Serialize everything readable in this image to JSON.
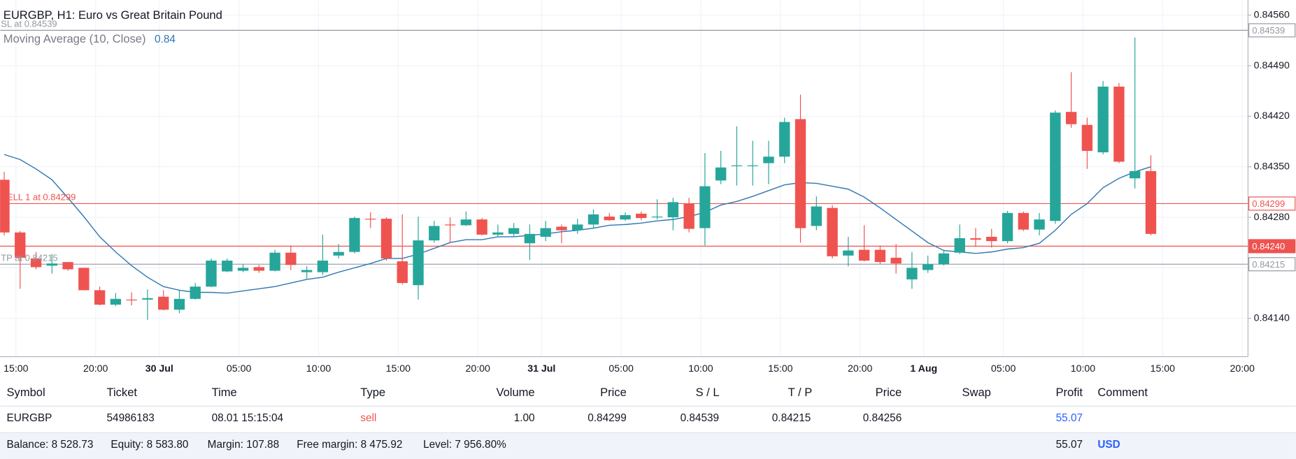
{
  "chart_data": {
    "type": "candlestick",
    "title": "EURGBP, H1: Euro vs Great Britain Pound",
    "indicator": {
      "name": "Moving Average (10, Close)",
      "value_label": "0.84",
      "color": "#2f77b3",
      "values": [
        0.84367,
        0.8436,
        0.84347,
        0.84332,
        0.84307,
        0.84281,
        0.84253,
        0.84232,
        0.84213,
        0.84197,
        0.84184,
        0.84179,
        0.84176,
        0.84176,
        0.84175,
        0.84178,
        0.84181,
        0.84184,
        0.84189,
        0.84194,
        0.84197,
        0.84204,
        0.8421,
        0.84216,
        0.84223,
        0.84223,
        0.84229,
        0.84237,
        0.84245,
        0.84249,
        0.84249,
        0.84253,
        0.84253,
        0.84255,
        0.84257,
        0.8426,
        0.84262,
        0.84265,
        0.84269,
        0.8427,
        0.84272,
        0.84275,
        0.84277,
        0.84281,
        0.84287,
        0.84297,
        0.84302,
        0.84309,
        0.84317,
        0.84325,
        0.84328,
        0.84327,
        0.84323,
        0.84319,
        0.84308,
        0.84293,
        0.84277,
        0.84261,
        0.84245,
        0.84234,
        0.84232,
        0.8423,
        0.84232,
        0.84236,
        0.84238,
        0.84244,
        0.84262,
        0.84284,
        0.84299,
        0.84321,
        0.84334,
        0.84343,
        0.8435,
        null,
        null,
        null,
        null,
        null,
        null
      ]
    },
    "categories": [
      null,
      "15:00",
      null,
      null,
      null,
      null,
      "20:00",
      null,
      null,
      null,
      "30 Jul",
      null,
      null,
      null,
      null,
      "05:00",
      null,
      null,
      null,
      null,
      "10:00",
      null,
      null,
      null,
      null,
      "15:00",
      null,
      null,
      null,
      null,
      "20:00",
      null,
      null,
      null,
      "31 Jul",
      null,
      null,
      null,
      null,
      "05:00",
      null,
      null,
      null,
      null,
      "10:00",
      null,
      null,
      null,
      null,
      "15:00",
      null,
      null,
      null,
      null,
      "20:00",
      null,
      null,
      null,
      "1 Aug",
      null,
      null,
      null,
      null,
      "05:00",
      null,
      null,
      null,
      null,
      "10:00",
      null,
      null,
      null,
      null,
      "15:00",
      null,
      null,
      null,
      null,
      "20:00"
    ],
    "open": [
      0.84332,
      0.84259,
      0.84223,
      0.84213,
      0.84218,
      0.8421,
      0.84179,
      0.84159,
      0.84166,
      0.84166,
      0.8417,
      0.84152,
      0.84167,
      0.84184,
      0.84205,
      0.84206,
      0.84211,
      0.84206,
      0.84231,
      0.84204,
      0.84204,
      0.84227,
      0.84232,
      0.84278,
      0.84278,
      0.84219,
      0.84186,
      0.84248,
      0.8427,
      0.84269,
      0.84277,
      0.84256,
      0.84257,
      0.84244,
      0.84253,
      0.84267,
      0.84262,
      0.8427,
      0.84281,
      0.84277,
      0.84285,
      0.8428,
      0.8428,
      0.84299,
      0.84265,
      0.84331,
      0.84351,
      0.84351,
      0.84355,
      0.84364,
      0.84416,
      0.84268,
      0.84293,
      0.84227,
      0.84235,
      0.84235,
      0.84224,
      0.84194,
      0.84207,
      0.84215,
      0.84231,
      0.84251,
      0.84253,
      0.84247,
      0.84286,
      0.84263,
      0.84275,
      0.84426,
      0.84408,
      0.8437,
      0.84461,
      0.84334,
      0.84344,
      null,
      null,
      null,
      null,
      null,
      null
    ],
    "high": [
      0.84343,
      0.84261,
      0.84232,
      0.84229,
      0.84218,
      0.8421,
      0.84184,
      0.84175,
      0.84176,
      0.8418,
      0.84179,
      0.84179,
      0.84189,
      0.84223,
      0.84223,
      0.84215,
      0.84214,
      0.84235,
      0.84241,
      0.84212,
      0.84256,
      0.84243,
      0.84281,
      0.84287,
      0.8428,
      0.84284,
      0.84281,
      0.84275,
      0.8428,
      0.84288,
      0.84279,
      0.8427,
      0.84272,
      0.8427,
      0.84275,
      0.8427,
      0.84278,
      0.84291,
      0.84286,
      0.84287,
      0.84288,
      0.84305,
      0.84307,
      0.84307,
      0.84369,
      0.84372,
      0.84406,
      0.84386,
      0.84386,
      0.84418,
      0.8445,
      0.84309,
      0.84297,
      0.84253,
      0.84269,
      0.84241,
      0.84243,
      0.84232,
      0.84227,
      0.84235,
      0.8427,
      0.84265,
      0.84264,
      0.84289,
      0.84288,
      0.84286,
      0.84428,
      0.84481,
      0.84418,
      0.84469,
      0.84466,
      0.84529,
      0.84366,
      null,
      null,
      null,
      null,
      null,
      null
    ],
    "low": [
      0.84255,
      0.84181,
      0.84208,
      0.84202,
      0.84206,
      0.84179,
      0.84158,
      0.84157,
      0.84158,
      0.84138,
      0.84151,
      0.84147,
      0.84166,
      0.84183,
      0.84204,
      0.84204,
      0.84203,
      0.84205,
      0.84207,
      0.84195,
      0.842,
      0.84223,
      0.8423,
      0.84265,
      0.8422,
      0.84187,
      0.84166,
      0.84245,
      0.84245,
      0.84268,
      0.84255,
      0.84252,
      0.84254,
      0.84221,
      0.84247,
      0.84244,
      0.84257,
      0.84265,
      0.84275,
      0.84275,
      0.84276,
      0.84277,
      0.84262,
      0.84259,
      0.84241,
      0.84326,
      0.84324,
      0.84324,
      0.84326,
      0.84355,
      0.84245,
      0.84262,
      0.84223,
      0.84212,
      0.84219,
      0.84215,
      0.84202,
      0.84181,
      0.84203,
      0.84213,
      0.84229,
      0.84239,
      0.84238,
      0.84244,
      0.84261,
      0.84255,
      0.84271,
      0.84404,
      0.84347,
      0.84367,
      0.84355,
      0.8432,
      0.84255,
      null,
      null,
      null,
      null,
      null,
      null
    ],
    "close": [
      0.84259,
      0.84224,
      0.84211,
      0.84216,
      0.84208,
      0.84179,
      0.84159,
      0.84167,
      0.84165,
      0.84168,
      0.84152,
      0.84167,
      0.84184,
      0.8422,
      0.8422,
      0.8421,
      0.84206,
      0.84231,
      0.84214,
      0.84207,
      0.8422,
      0.84232,
      0.84279,
      0.84277,
      0.84223,
      0.84189,
      0.84248,
      0.84268,
      0.84269,
      0.84277,
      0.84256,
      0.84259,
      0.84265,
      0.84257,
      0.84265,
      0.84262,
      0.8427,
      0.84284,
      0.84276,
      0.84283,
      0.84279,
      0.84281,
      0.84301,
      0.84264,
      0.84323,
      0.84349,
      0.84352,
      0.84352,
      0.84364,
      0.84412,
      0.84265,
      0.84295,
      0.84226,
      0.84234,
      0.8422,
      0.84218,
      0.84216,
      0.8421,
      0.84215,
      0.8423,
      0.84251,
      0.84249,
      0.84247,
      0.84286,
      0.84263,
      0.84277,
      0.84425,
      0.84409,
      0.84372,
      0.84461,
      0.84357,
      0.84344,
      0.84257,
      null,
      null,
      null,
      null,
      null,
      null
    ],
    "up_color": "#26a69a",
    "down_color": "#ef5350",
    "ylim": [
      0.84087,
      0.84581
    ],
    "yticks": [
      {
        "value": 0.8456,
        "label": "0.84560"
      },
      {
        "value": 0.8449,
        "label": "0.84490"
      },
      {
        "value": 0.8442,
        "label": "0.84420"
      },
      {
        "value": 0.8435,
        "label": "0.84350"
      },
      {
        "value": 0.8428,
        "label": "0.84280"
      },
      {
        "value": 0.8421,
        "label": "0.84210"
      },
      {
        "value": 0.8414,
        "label": "0.84140"
      }
    ],
    "grid": true,
    "levels": [
      {
        "text": "SL at 0.84539",
        "value": 0.84539,
        "label": "0.84539",
        "color": "#9598a1"
      },
      {
        "text": "SELL 1 at 0.84299",
        "value": 0.84299,
        "label": "0.84299",
        "color": "#ef5350"
      },
      {
        "value": 0.8424,
        "label": "0.84240",
        "color": "#ef5350",
        "filled": true
      },
      {
        "text": "TP at 0.84215",
        "value": 0.84215,
        "label": "0.84215",
        "color": "#9598a1"
      }
    ]
  },
  "table": {
    "headers": [
      "Symbol",
      "Ticket",
      "Time",
      "Type",
      "Volume",
      "Price",
      "S / L",
      "T / P",
      "Price",
      "Swap",
      "Profit",
      "Comment"
    ],
    "rows": [
      [
        "EURGBP",
        "54986183",
        "08.01 15:15:04",
        "sell",
        "1.00",
        "0.84299",
        "0.84539",
        "0.84215",
        "0.84256",
        null,
        "55.07",
        null
      ]
    ]
  },
  "status": {
    "items": [
      "Balance: 8 528.73",
      "Equity: 8 583.80",
      "Margin: 107.88",
      "Free margin: 8 475.92",
      "Level: 7 956.80%"
    ],
    "profit": "55.07",
    "currency": "USD"
  }
}
